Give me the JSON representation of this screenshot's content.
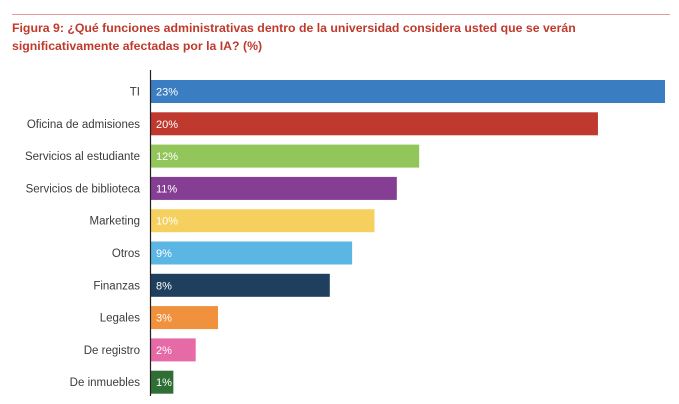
{
  "title": "Figura 9: ¿Qué funciones administrativas dentro de la universidad considera usted que se verán significativamente afectadas por la IA? (%)",
  "chart_data": {
    "type": "bar",
    "orientation": "horizontal",
    "title": "Figura 9: ¿Qué funciones administrativas dentro de la universidad considera usted que se verán significativamente afectadas por la IA? (%)",
    "xlabel": "",
    "ylabel": "",
    "categories": [
      "TI",
      "Oficina de admisiones",
      "Servicios al estudiante",
      "Servicios de biblioteca",
      "Marketing",
      "Otros",
      "Finanzas",
      "Legales",
      "De registro",
      "De inmuebles"
    ],
    "values": [
      23,
      20,
      12,
      11,
      10,
      9,
      8,
      3,
      2,
      1
    ],
    "data_labels": [
      "23%",
      "20%",
      "12%",
      "11%",
      "10%",
      "9%",
      "8%",
      "3%",
      "2%",
      "1%"
    ],
    "colors": [
      "#3a7dc1",
      "#c0392f",
      "#93c65a",
      "#853e93",
      "#f5d05e",
      "#5bb6e3",
      "#1f3f5e",
      "#f0923d",
      "#e56aa6",
      "#2f6e34"
    ],
    "xlim": [
      0,
      23
    ],
    "grid": false,
    "legend": "none"
  }
}
